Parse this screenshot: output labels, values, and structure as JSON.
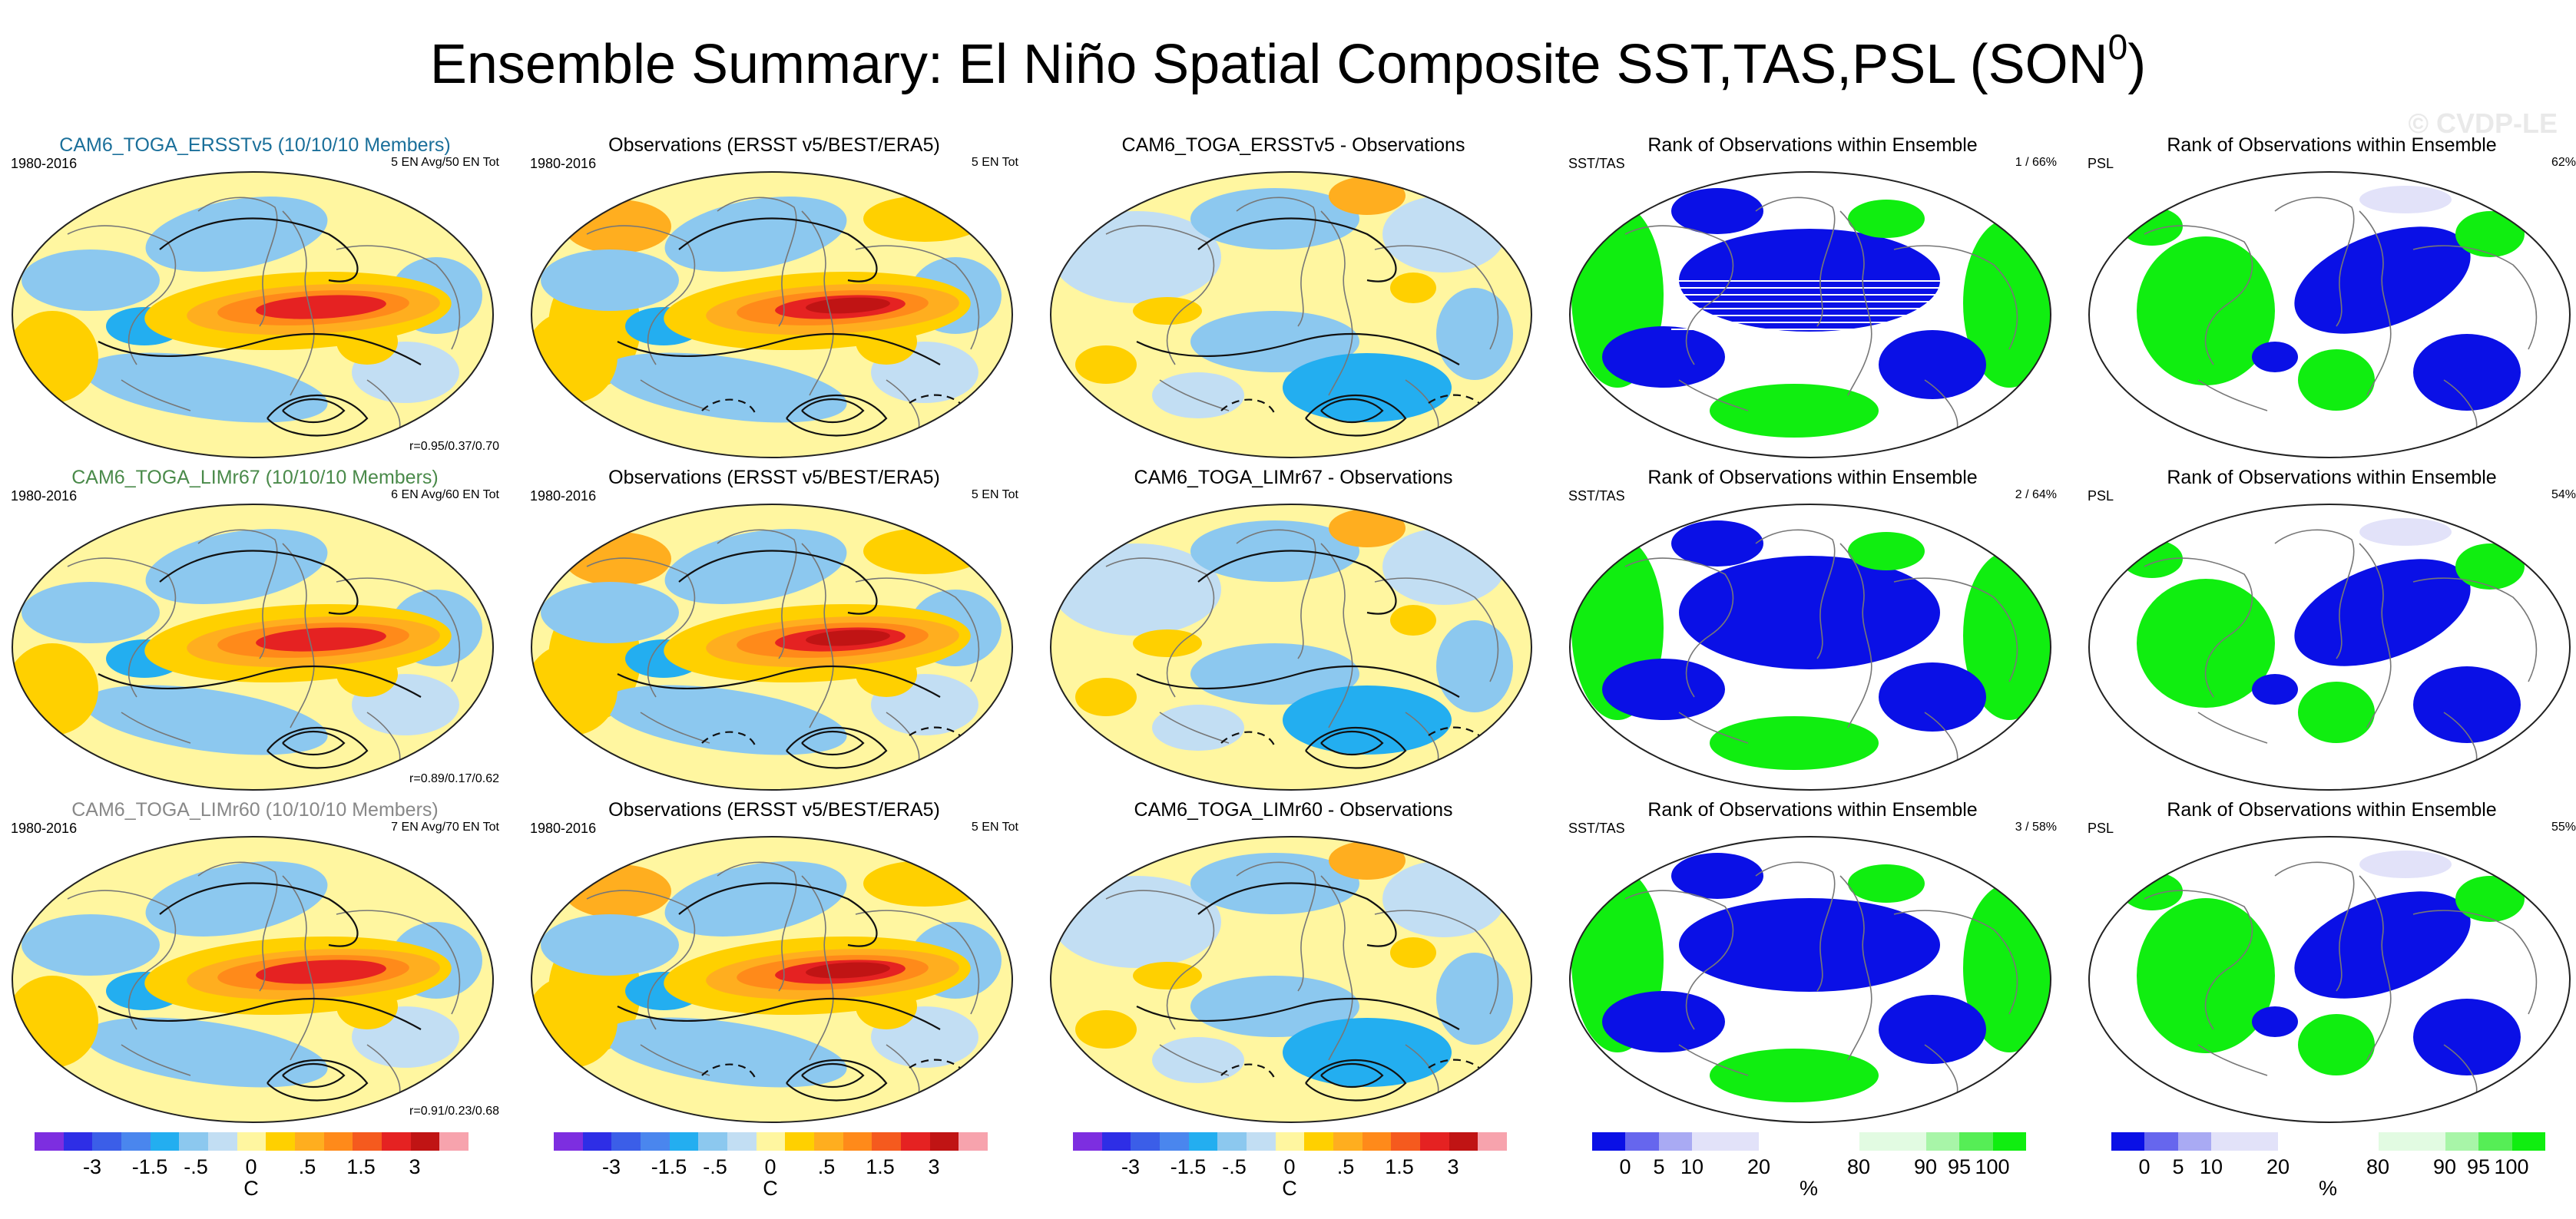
{
  "title_main": "Ensemble Summary: El Niño Spatial Composite SST,TAS,PSL (SON",
  "title_sup": "0",
  "title_end": ")",
  "watermark": "© CVDP-LE",
  "colors": {
    "model_title_1": "#1a6f9a",
    "model_title_2": "#4a8a4a",
    "model_title_3": "#888888",
    "rank_low": "#0a10e6",
    "rank_high": "#10ee10",
    "warm_core": "#d42020",
    "cool": "#8cc8ef",
    "neutral": "#fff6a0"
  },
  "rows": [
    {
      "model": {
        "title": "CAM6_TOGA_ERSSTv5 (10/10/10 Members)",
        "years": "1980-2016",
        "count": "5 EN Avg/50 EN Tot",
        "corr": "r=0.95/0.37/0.70"
      },
      "obs": {
        "title": "Observations (ERSST v5/BEST/ERA5)",
        "years": "1980-2016",
        "count": "5 EN Tot"
      },
      "diff": {
        "title": "CAM6_TOGA_ERSSTv5 - Observations"
      },
      "rank_sst": {
        "title": "Rank of Observations within Ensemble",
        "label": "SST/TAS",
        "pct": "1 /  66%"
      },
      "rank_psl": {
        "title": "Rank of Observations within Ensemble",
        "label": "PSL",
        "pct": "62%"
      }
    },
    {
      "model": {
        "title": "CAM6_TOGA_LIMr67 (10/10/10 Members)",
        "years": "1980-2016",
        "count": "6 EN Avg/60 EN Tot",
        "corr": "r=0.89/0.17/0.62"
      },
      "obs": {
        "title": "Observations (ERSST v5/BEST/ERA5)",
        "years": "1980-2016",
        "count": "5 EN Tot"
      },
      "diff": {
        "title": "CAM6_TOGA_LIMr67 - Observations"
      },
      "rank_sst": {
        "title": "Rank of Observations within Ensemble",
        "label": "SST/TAS",
        "pct": "2 /  64%"
      },
      "rank_psl": {
        "title": "Rank of Observations within Ensemble",
        "label": "PSL",
        "pct": "54%"
      }
    },
    {
      "model": {
        "title": "CAM6_TOGA_LIMr60 (10/10/10 Members)",
        "years": "1980-2016",
        "count": "7 EN Avg/70 EN Tot",
        "corr": "r=0.91/0.23/0.68"
      },
      "obs": {
        "title": "Observations (ERSST v5/BEST/ERA5)",
        "years": "1980-2016",
        "count": "5 EN Tot"
      },
      "diff": {
        "title": "CAM6_TOGA_LIMr60 - Observations"
      },
      "rank_sst": {
        "title": "Rank of Observations within Ensemble",
        "label": "SST/TAS",
        "pct": "3 /  58%"
      },
      "rank_psl": {
        "title": "Rank of Observations within Ensemble",
        "label": "PSL",
        "pct": "55%"
      }
    }
  ],
  "colorbar_temp": {
    "ticks": [
      "-3",
      "-1.5",
      "-.5",
      "0",
      ".5",
      "1.5",
      "3"
    ],
    "unit": "C",
    "colors": [
      "#7d2ee0",
      "#2e2ee6",
      "#3b5ee8",
      "#4a86ee",
      "#23aef0",
      "#8cc8ef",
      "#c2def3",
      "#fff6a0",
      "#ffd000",
      "#ffae1f",
      "#ff8a1a",
      "#f55a1e",
      "#e52222",
      "#c01414",
      "#f7a3ad"
    ]
  },
  "colorbar_rank": {
    "ticks": [
      "0",
      "5",
      "10",
      "20",
      "80",
      "90",
      "95",
      "100"
    ],
    "unit": "%",
    "colors": [
      "#0a10e6",
      "#6666ee",
      "#a9aaf3",
      "#e2e2f9",
      "#e2e2f9",
      "#ffffff",
      "#ffffff",
      "#ffffff",
      "#e2fbe2",
      "#e2fbe2",
      "#a8f5a8",
      "#56ee56",
      "#10ee10"
    ]
  }
}
